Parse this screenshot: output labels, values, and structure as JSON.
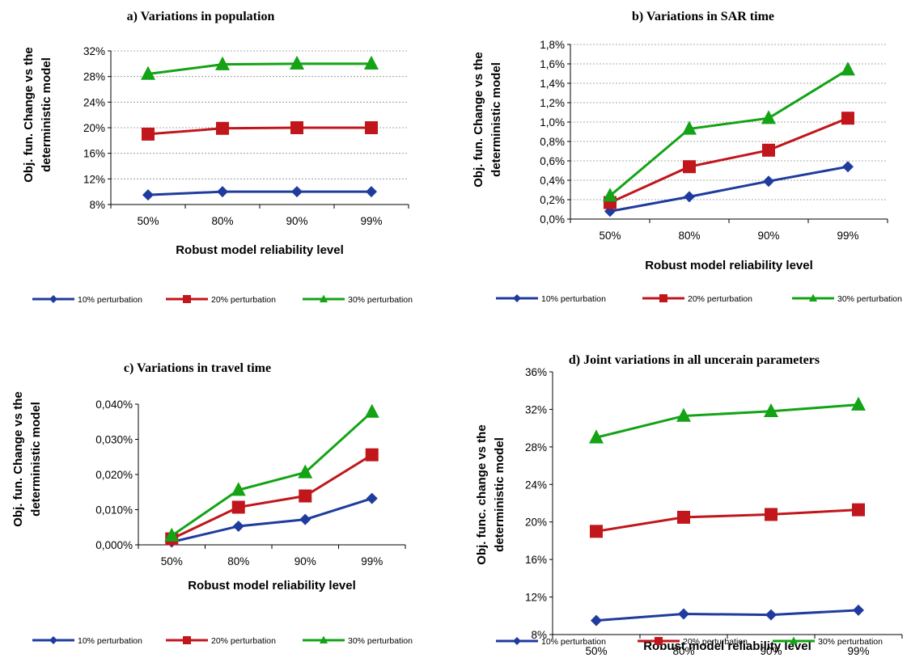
{
  "chart_data": [
    {
      "type": "line",
      "title": "a) Variations in population",
      "xlabel": "Robust model reliability level",
      "ylabel": [
        "Obj. fun. Change vs the",
        "deterministic model"
      ],
      "categories": [
        "50%",
        "80%",
        "90%",
        "99%"
      ],
      "ylim": [
        8,
        32
      ],
      "yticks": [
        "8%",
        "12%",
        "16%",
        "20%",
        "24%",
        "28%",
        "32%"
      ],
      "ytick_values": [
        8,
        12,
        16,
        20,
        24,
        28,
        32
      ],
      "grid": true,
      "legend_position": "bottom",
      "series": [
        {
          "name": "10% perturbation",
          "values": [
            9.5,
            10.0,
            10.0,
            10.0
          ],
          "color": "#1f3b9e",
          "marker": "diamond"
        },
        {
          "name": "20% perturbation",
          "values": [
            19.0,
            19.9,
            20.0,
            20.0
          ],
          "color": "#c0161c",
          "marker": "square"
        },
        {
          "name": "30% perturbation",
          "values": [
            28.4,
            29.9,
            30.0,
            30.0
          ],
          "color": "#13a315",
          "marker": "triangle"
        }
      ]
    },
    {
      "type": "line",
      "title": "b) Variations in SAR time",
      "xlabel": "Robust model reliability level",
      "ylabel": [
        "Obj. fun. Change vs the",
        "deterministic model"
      ],
      "categories": [
        "50%",
        "80%",
        "90%",
        "99%"
      ],
      "ylim": [
        0,
        1.8
      ],
      "yticks": [
        "0,0%",
        "0,2%",
        "0,4%",
        "0,6%",
        "0,8%",
        "1,0%",
        "1,2%",
        "1,4%",
        "1,6%",
        "1,8%"
      ],
      "ytick_values": [
        0,
        0.2,
        0.4,
        0.6,
        0.8,
        1.0,
        1.2,
        1.4,
        1.6,
        1.8
      ],
      "grid": true,
      "legend_position": "bottom",
      "series": [
        {
          "name": "10% perturbation",
          "values": [
            0.08,
            0.23,
            0.39,
            0.54
          ],
          "color": "#1f3b9e",
          "marker": "diamond"
        },
        {
          "name": "20% perturbation",
          "values": [
            0.17,
            0.54,
            0.71,
            1.04
          ],
          "color": "#c0161c",
          "marker": "square"
        },
        {
          "name": "30% perturbation",
          "values": [
            0.24,
            0.93,
            1.04,
            1.54
          ],
          "color": "#13a315",
          "marker": "triangle"
        }
      ]
    },
    {
      "type": "line",
      "title": "c) Variations in travel time",
      "xlabel": "Robust model reliability level",
      "ylabel": [
        "Obj. fun. Change vs the",
        "deterministic model"
      ],
      "categories": [
        "50%",
        "80%",
        "90%",
        "99%"
      ],
      "ylim": [
        0,
        0.04
      ],
      "yticks": [
        "0,000%",
        "0,010%",
        "0,020%",
        "0,030%",
        "0,040%"
      ],
      "ytick_values": [
        0,
        0.01,
        0.02,
        0.03,
        0.04
      ],
      "grid": false,
      "legend_position": "bottom",
      "series": [
        {
          "name": "10% perturbation",
          "values": [
            0.0008,
            0.0053,
            0.0072,
            0.0132
          ],
          "color": "#1f3b9e",
          "marker": "diamond"
        },
        {
          "name": "20% perturbation",
          "values": [
            0.0017,
            0.0107,
            0.0139,
            0.0256
          ],
          "color": "#c0161c",
          "marker": "square"
        },
        {
          "name": "30% perturbation",
          "values": [
            0.0026,
            0.0156,
            0.0206,
            0.0378
          ],
          "color": "#13a315",
          "marker": "triangle"
        }
      ]
    },
    {
      "type": "line",
      "title": "d) Joint variations in all uncerain parameters",
      "xlabel": "Robust model reliability level",
      "ylabel": [
        "Obj. func. change vs the",
        "deterministic model"
      ],
      "categories": [
        "50%",
        "80%",
        "90%",
        "99%"
      ],
      "ylim": [
        8,
        36
      ],
      "yticks": [
        "8%",
        "12%",
        "16%",
        "20%",
        "24%",
        "28%",
        "32%",
        "36%"
      ],
      "ytick_values": [
        8,
        12,
        16,
        20,
        24,
        28,
        32,
        36
      ],
      "grid": false,
      "legend_position": "bottom",
      "series": [
        {
          "name": "10% perturbation",
          "values": [
            9.5,
            10.2,
            10.1,
            10.6
          ],
          "color": "#1f3b9e",
          "marker": "diamond"
        },
        {
          "name": "20% perturbation",
          "values": [
            19.0,
            20.5,
            20.8,
            21.3
          ],
          "color": "#c0161c",
          "marker": "square"
        },
        {
          "name": "30% perturbation",
          "values": [
            29.0,
            31.3,
            31.8,
            32.5
          ],
          "color": "#13a315",
          "marker": "triangle"
        }
      ]
    }
  ]
}
